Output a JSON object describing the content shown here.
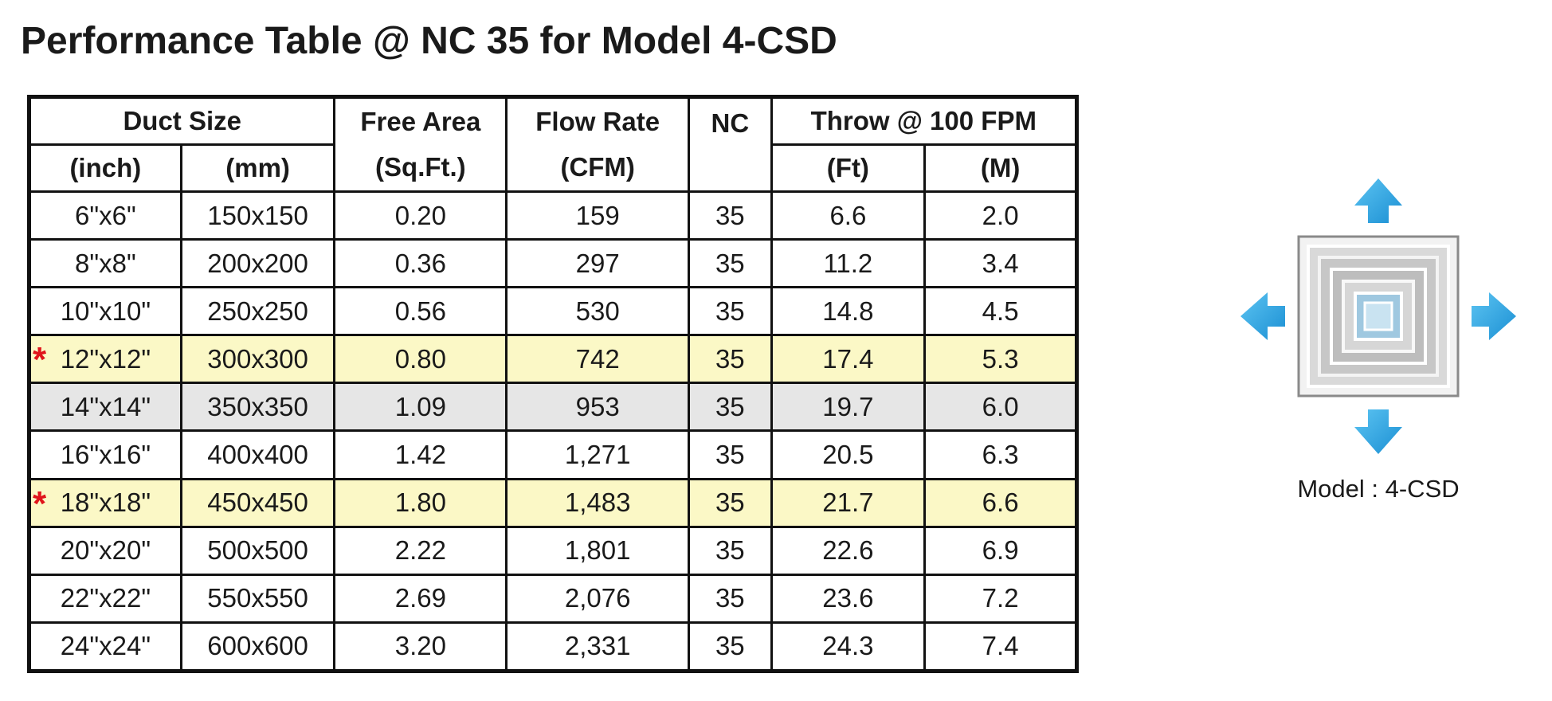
{
  "title": "Performance Table @ NC 35 for Model 4-CSD",
  "table": {
    "group_headers": {
      "duct_size": "Duct Size",
      "free_area": "Free Area",
      "flow_rate": "Flow Rate",
      "nc": "NC",
      "throw": "Throw @ 100 FPM"
    },
    "unit_headers": {
      "inch": "(inch)",
      "mm": "(mm)",
      "sqft": "(Sq.Ft.)",
      "cfm": "(CFM)",
      "ft": "(Ft)",
      "m": "(M)"
    },
    "marker_symbol": "*",
    "highlight_color": "#fbf8c6",
    "shade_color": "#e6e6e6",
    "marker_color": "#e0141b",
    "rows": [
      {
        "inch": "6\"x6\"",
        "mm": "150x150",
        "free_area": "0.20",
        "cfm": "159",
        "nc": "35",
        "ft": "6.6",
        "m": "2.0"
      },
      {
        "inch": "8\"x8\"",
        "mm": "200x200",
        "free_area": "0.36",
        "cfm": "297",
        "nc": "35",
        "ft": "11.2",
        "m": "3.4"
      },
      {
        "inch": "10\"x10\"",
        "mm": "250x250",
        "free_area": "0.56",
        "cfm": "530",
        "nc": "35",
        "ft": "14.8",
        "m": "4.5"
      },
      {
        "inch": "12\"x12\"",
        "mm": "300x300",
        "free_area": "0.80",
        "cfm": "742",
        "nc": "35",
        "ft": "17.4",
        "m": "5.3",
        "marked": true
      },
      {
        "inch": "14\"x14\"",
        "mm": "350x350",
        "free_area": "1.09",
        "cfm": "953",
        "nc": "35",
        "ft": "19.7",
        "m": "6.0"
      },
      {
        "inch": "16\"x16\"",
        "mm": "400x400",
        "free_area": "1.42",
        "cfm": "1,271",
        "nc": "35",
        "ft": "20.5",
        "m": "6.3"
      },
      {
        "inch": "18\"x18\"",
        "mm": "450x450",
        "free_area": "1.80",
        "cfm": "1,483",
        "nc": "35",
        "ft": "21.7",
        "m": "6.6",
        "marked": true
      },
      {
        "inch": "20\"x20\"",
        "mm": "500x500",
        "free_area": "2.22",
        "cfm": "1,801",
        "nc": "35",
        "ft": "22.6",
        "m": "6.9"
      },
      {
        "inch": "22\"x22\"",
        "mm": "550x550",
        "free_area": "2.69",
        "cfm": "2,076",
        "nc": "35",
        "ft": "23.6",
        "m": "7.2"
      },
      {
        "inch": "24\"x24\"",
        "mm": "600x600",
        "free_area": "3.20",
        "cfm": "2,331",
        "nc": "35",
        "ft": "24.3",
        "m": "7.4"
      }
    ]
  },
  "product": {
    "caption": "Model : 4-CSD",
    "arrow_color": "#2aa3e0",
    "icon": "square-ceiling-diffuser-icon"
  }
}
